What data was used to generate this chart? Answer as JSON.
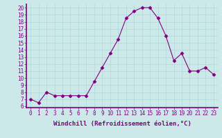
{
  "x": [
    0,
    1,
    2,
    3,
    4,
    5,
    6,
    7,
    8,
    9,
    10,
    11,
    12,
    13,
    14,
    15,
    16,
    17,
    18,
    19,
    20,
    21,
    22,
    23
  ],
  "y": [
    7.0,
    6.5,
    8.0,
    7.5,
    7.5,
    7.5,
    7.5,
    7.5,
    9.5,
    11.5,
    13.5,
    15.5,
    18.5,
    19.5,
    20.0,
    20.0,
    18.5,
    16.0,
    12.5,
    13.5,
    11.0,
    11.0,
    11.5,
    10.5
  ],
  "line_color": "#800080",
  "marker": "D",
  "marker_size": 2.5,
  "bg_color": "#cce8e8",
  "xlabel": "Windchill (Refroidissement éolien,°C)",
  "xlabel_fontsize": 6.5,
  "ylabel_ticks": [
    6,
    7,
    8,
    9,
    10,
    11,
    12,
    13,
    14,
    15,
    16,
    17,
    18,
    19,
    20
  ],
  "xlim": [
    -0.5,
    23.5
  ],
  "ylim": [
    5.8,
    20.5
  ],
  "grid_color": "#b0d8d8",
  "tick_fontsize": 5.5,
  "border_color": "#800080"
}
